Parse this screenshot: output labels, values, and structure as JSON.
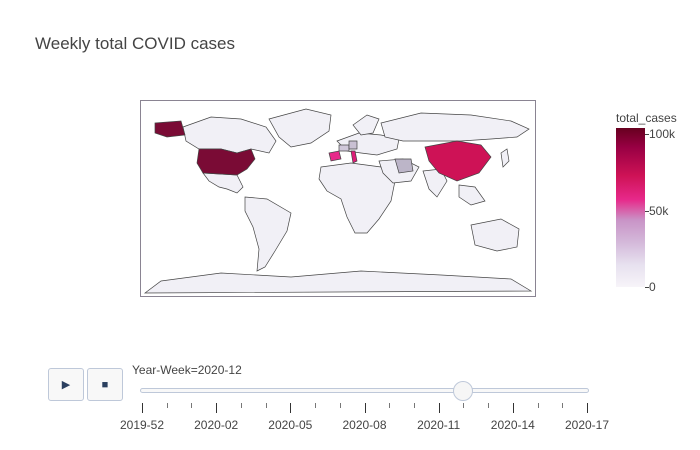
{
  "title": "Weekly total COVID cases",
  "colorbar": {
    "title": "total_cases",
    "ticks": [
      {
        "label": "100k",
        "value": 100000
      },
      {
        "label": "50k",
        "value": 50000
      },
      {
        "label": "0",
        "value": 0
      }
    ],
    "colors": [
      "#f7f4f9",
      "#e7e1ef",
      "#d4b9da",
      "#c994c7",
      "#e7298a",
      "#ce1256",
      "#980043",
      "#67001f"
    ]
  },
  "map": {
    "projection": "equirectangular",
    "highlighted_countries": [
      {
        "name": "United States",
        "level": 1.0,
        "color": "#7a0b35"
      },
      {
        "name": "China",
        "level": 0.65,
        "color": "#ce1256"
      },
      {
        "name": "Italy",
        "level": 0.62,
        "color": "#dd1c77"
      },
      {
        "name": "Spain",
        "level": 0.45,
        "color": "#e7298a"
      },
      {
        "name": "Iran",
        "level": 0.22,
        "color": "#bcb5c8"
      },
      {
        "name": "Germany",
        "level": 0.25,
        "color": "#c9c0d3"
      },
      {
        "name": "France",
        "level": 0.2,
        "color": "#d0c8da"
      }
    ],
    "default_fill": "#f1f0f6",
    "border_color": "#444444"
  },
  "controls": {
    "play_icon": "play-icon",
    "stop_icon": "stop-icon",
    "play_glyph": "▶",
    "stop_glyph": "■"
  },
  "slider": {
    "prefix": "Year-Week=",
    "current": "2020-12",
    "current_label": "Year-Week=2020-12",
    "position_fraction": 0.72,
    "tick_labels": [
      "2019-52",
      "2020-02",
      "2020-05",
      "2020-08",
      "2020-11",
      "2020-14",
      "2020-17"
    ]
  }
}
